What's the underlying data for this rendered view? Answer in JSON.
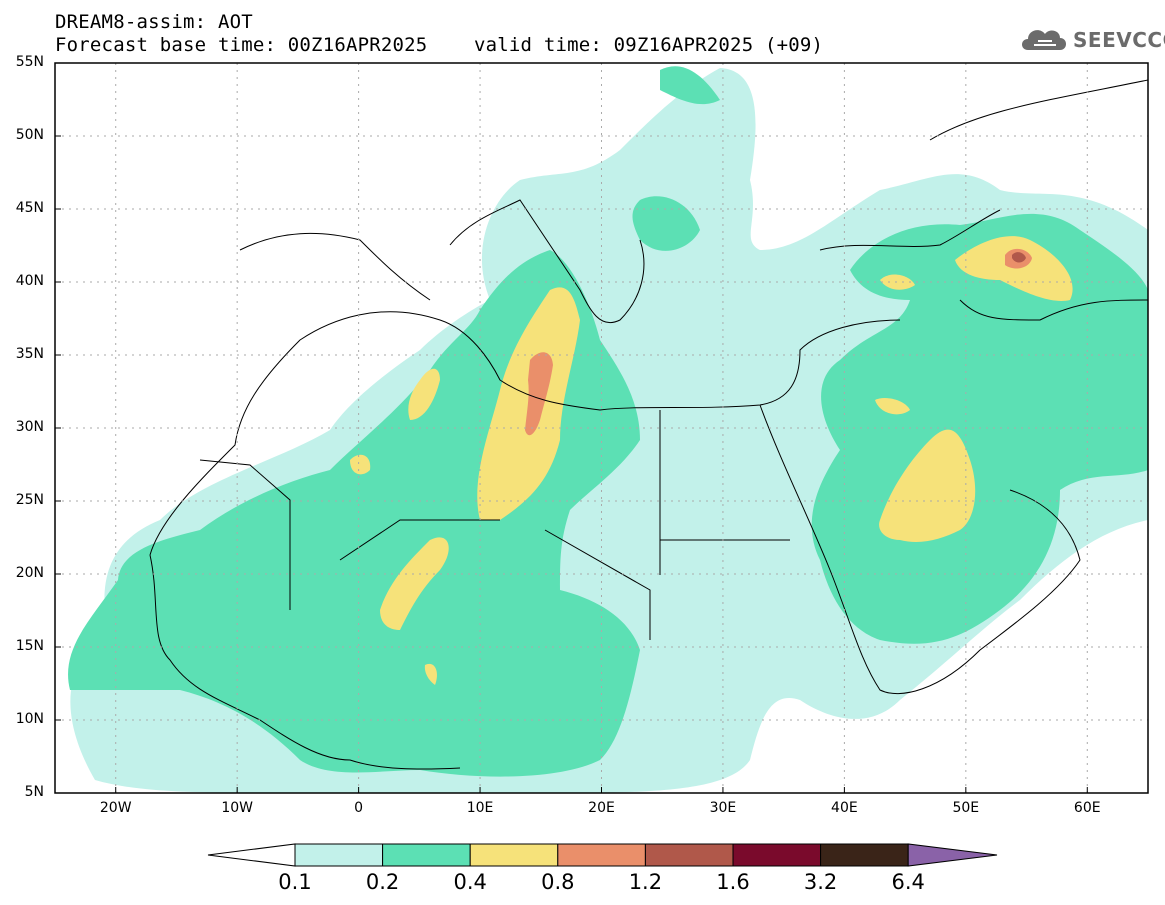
{
  "header": {
    "line1": "DREAM8-assim: AOT",
    "line2": "Forecast base time: 00Z16APR2025    valid time: 09Z16APR2025 (+09)"
  },
  "logo": {
    "text": "SEEVCCC",
    "icon": "cloud-icon"
  },
  "map": {
    "lat_labels": [
      "55N",
      "50N",
      "45N",
      "40N",
      "35N",
      "30N",
      "25N",
      "20N",
      "15N",
      "10N",
      "5N"
    ],
    "lon_labels": [
      "20W",
      "10W",
      "0",
      "10E",
      "20E",
      "30E",
      "40E",
      "50E",
      "60E"
    ],
    "colors": {
      "l1": "#c2f1ea",
      "l2": "#5ce0b4",
      "l3": "#f6e27a",
      "l4": "#ea8f6a",
      "l5": "#b0584a",
      "l6": "#7a0a2c",
      "l7": "#3a2418",
      "l8": "#8a62a8"
    }
  },
  "colorbar": {
    "labels": [
      "0.1",
      "0.2",
      "0.4",
      "0.8",
      "1.2",
      "1.6",
      "3.2",
      "6.4"
    ]
  }
}
